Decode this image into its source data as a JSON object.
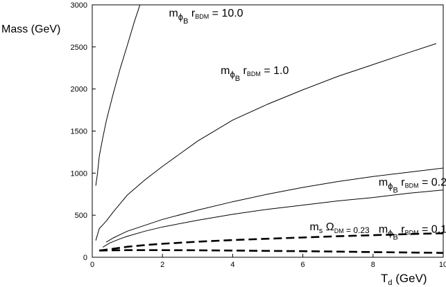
{
  "chart_data": {
    "type": "line",
    "xlabel": {
      "main": "T",
      "sub": "d",
      "unit": " (GeV)"
    },
    "ylabel": "Mass (GeV)",
    "xlim": [
      0,
      10
    ],
    "ylim": [
      0,
      3000
    ],
    "xticks": [
      0,
      2,
      4,
      6,
      8,
      10
    ],
    "yticks": [
      0,
      500,
      1000,
      1500,
      2000,
      2500,
      3000
    ],
    "grid": false,
    "series": [
      {
        "label": {
          "pre": "m",
          "sub1": "ϕ",
          "subsub": "B",
          "r": "r",
          "rsub": "BDM",
          "post": " = 10.0"
        },
        "style": "solid",
        "x": [
          0.1,
          0.15,
          0.2,
          0.3,
          0.4,
          0.6,
          0.8,
          1.0,
          1.2,
          1.4
        ],
        "y": [
          850,
          1000,
          1200,
          1420,
          1620,
          1950,
          2250,
          2520,
          2800,
          3050
        ]
      },
      {
        "label": {
          "pre": "m",
          "sub1": "ϕ",
          "subsub": "B",
          "r": "r",
          "rsub": "BDM",
          "post": " = 1.0"
        },
        "style": "solid",
        "x": [
          0.1,
          0.2,
          0.4,
          0.6,
          0.8,
          1,
          1.5,
          2,
          3,
          4,
          5,
          6,
          7,
          8,
          9,
          9.8
        ],
        "y": [
          200,
          340,
          430,
          540,
          640,
          740,
          920,
          1080,
          1380,
          1630,
          1820,
          1990,
          2150,
          2290,
          2430,
          2540
        ]
      },
      {
        "label": {
          "pre": "m",
          "sub1": "ϕ",
          "subsub": "B",
          "r": "r",
          "rsub": "BDM",
          "post": " = 0.2"
        },
        "style": "solid",
        "x": [
          0.4,
          0.6,
          0.8,
          1,
          1.5,
          2,
          3,
          4,
          5,
          6,
          7,
          8,
          9,
          10
        ],
        "y": [
          180,
          230,
          270,
          310,
          380,
          450,
          560,
          660,
          750,
          830,
          900,
          960,
          1010,
          1060
        ]
      },
      {
        "label": {
          "pre": "m",
          "sub1": "ϕ",
          "subsub": "B",
          "r": "r",
          "rsub": "BDM",
          "post": " = 0.1"
        },
        "style": "solid",
        "x": [
          0.3,
          0.5,
          0.8,
          1,
          1.5,
          2,
          3,
          4,
          5,
          6,
          7,
          8,
          9,
          10
        ],
        "y": [
          120,
          170,
          220,
          250,
          310,
          360,
          440,
          510,
          570,
          620,
          670,
          710,
          760,
          800
        ]
      },
      {
        "label": {
          "pre": "m",
          "sub1": "s",
          "omega": "Ω",
          "omegasub": "DM",
          "post": " = 0.23"
        },
        "style": "dashed",
        "x": [
          0.2,
          0.5,
          1,
          1.5,
          2,
          3,
          4,
          5,
          6,
          7,
          8,
          9,
          10
        ],
        "y": [
          80,
          95,
          125,
          145,
          160,
          185,
          205,
          220,
          235,
          250,
          262,
          275,
          285
        ]
      },
      {
        "label": null,
        "style": "dashed",
        "x": [
          0.2,
          0.5,
          1,
          2,
          3,
          4,
          5,
          6,
          7,
          8,
          9,
          10
        ],
        "y": [
          80,
          82,
          85,
          85,
          83,
          80,
          76,
          72,
          67,
          62,
          57,
          52
        ]
      }
    ]
  }
}
